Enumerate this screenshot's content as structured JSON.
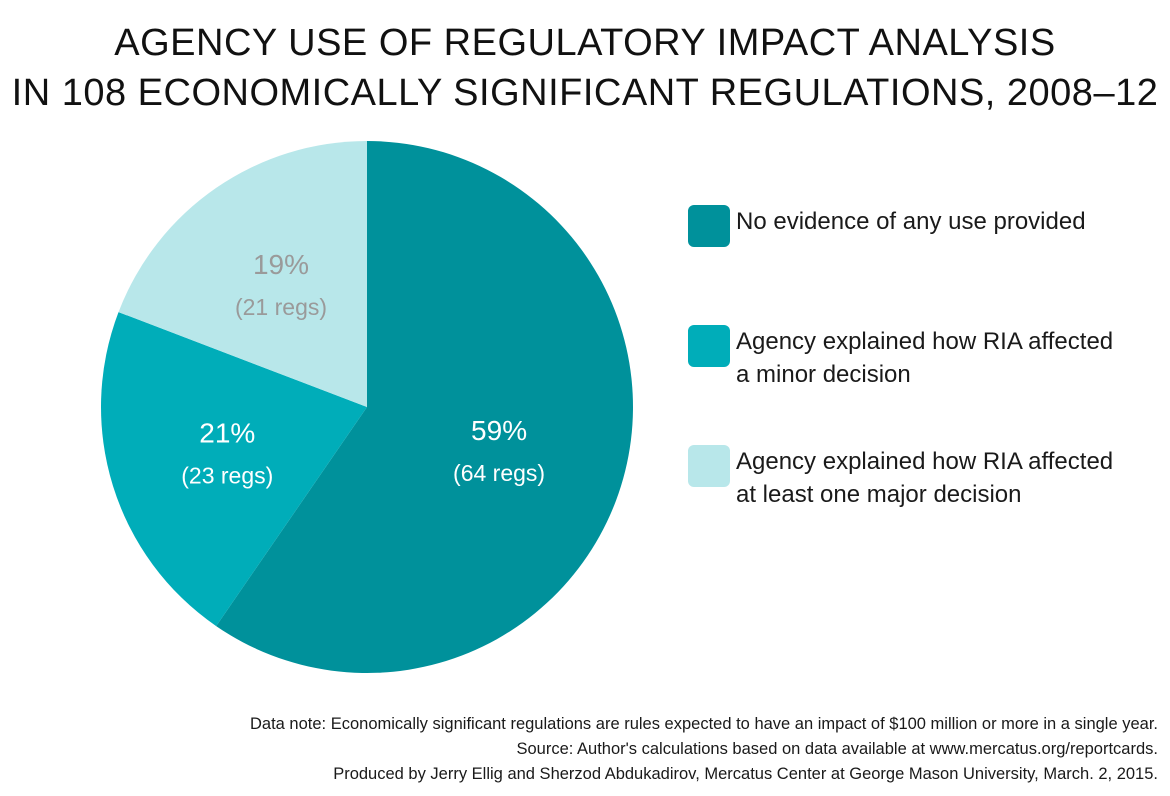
{
  "title": {
    "line1": "AGENCY USE OF REGULATORY IMPACT ANALYSIS",
    "line2": "IN 108 ECONOMICALLY SIGNIFICANT REGULATIONS, 2008–12"
  },
  "colors": {
    "no_evidence": "#00919b",
    "minor": "#00adb9",
    "major": "#b8e7ea",
    "light_label": "#9a9a9a",
    "dark_label": "#ffffff"
  },
  "chart_data": {
    "type": "pie",
    "slices": [
      {
        "name": "No evidence of any use provided",
        "value": 59,
        "percent_label": "59%",
        "count_label": "(64 regs)",
        "color": "#00919b"
      },
      {
        "name": "Agency explained how RIA affected a minor decision",
        "value": 21,
        "percent_label": "21%",
        "count_label": "(23 regs)",
        "color": "#00adb9"
      },
      {
        "name": "Agency explained how RIA affected at least one major decision",
        "value": 19,
        "percent_label": "19%",
        "count_label": "(21 regs)",
        "color": "#b8e7ea"
      }
    ],
    "legend_position": "right"
  },
  "legend": [
    {
      "line1": "No evidence of any use provided",
      "line2": ""
    },
    {
      "line1": "Agency explained how RIA affected",
      "line2": "a minor decision"
    },
    {
      "line1": "Agency explained how RIA affected",
      "line2": "at least one major decision"
    }
  ],
  "footer": {
    "note": "Data note: Economically significant regulations are rules expected to have an impact of $100 million or more in a single year.",
    "source": "Source: Author's calculations based on data available at www.mercatus.org/reportcards.",
    "credit": "Produced by Jerry Ellig and Sherzod Abdukadirov, Mercatus Center at George Mason University, March. 2, 2015."
  }
}
